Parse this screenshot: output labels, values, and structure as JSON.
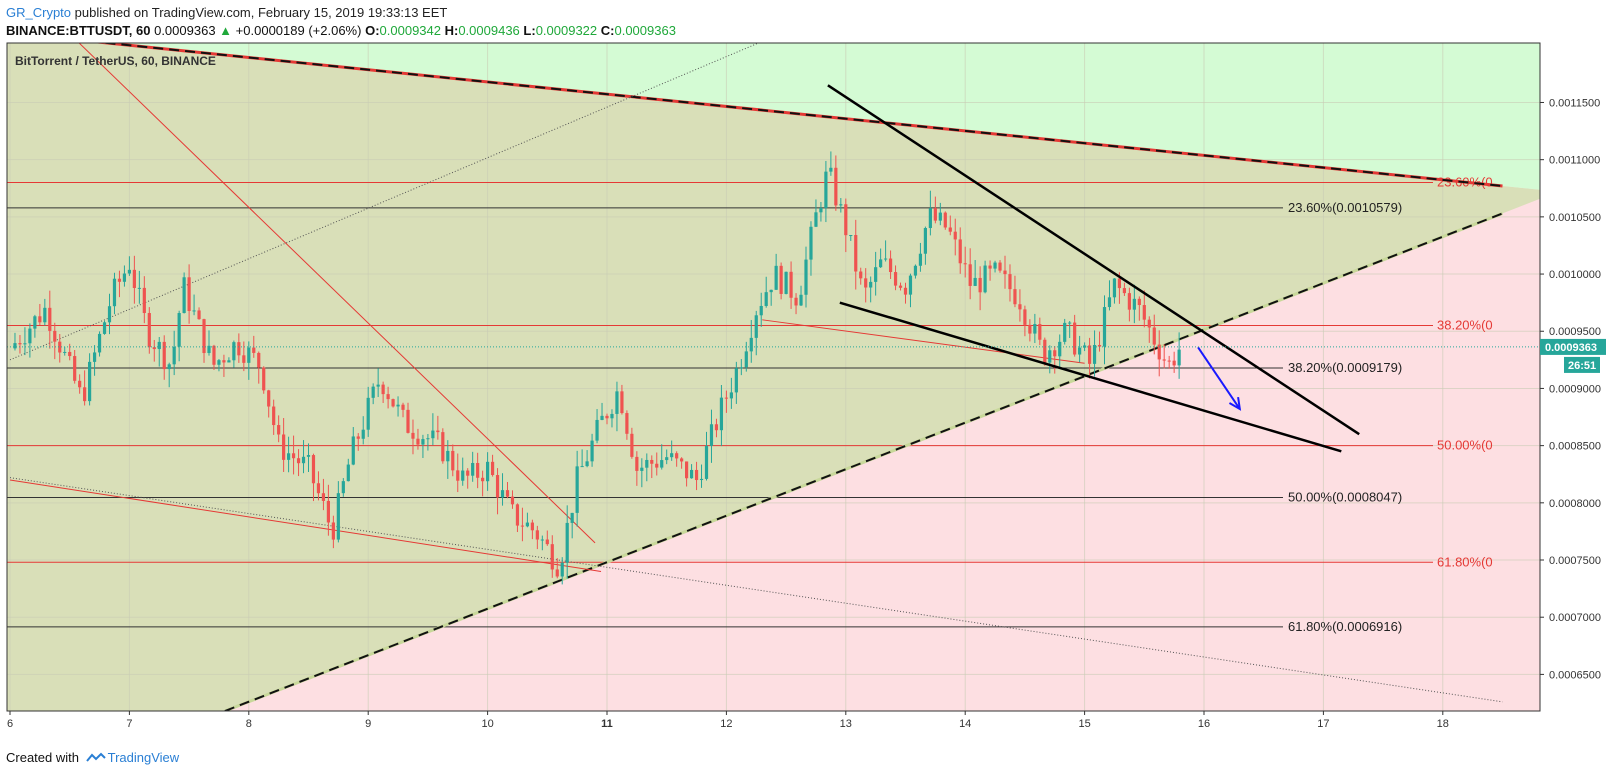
{
  "header": {
    "author": "GR_Crypto",
    "published_text": "published on TradingView.com, February 15, 2019 19:33:13 EET",
    "symbol": "BINANCE:BTTUSDT, 60",
    "last": "0.0009363",
    "change": "+0.0000189 (+2.06%)",
    "o_label": "O:",
    "o": "0.0009342",
    "h_label": "H:",
    "h": "0.0009436",
    "l_label": "L:",
    "l": "0.0009322",
    "c_label": "C:",
    "c": "0.0009363"
  },
  "footer": {
    "created_with": "Created with",
    "brand": "TradingView"
  },
  "colors": {
    "up": "#26a69a",
    "down": "#ef5350",
    "fib_red": "#e53935",
    "fib_black": "#333333",
    "zone_olive": "#d9dfb8",
    "zone_green": "#d4fbd4",
    "zone_pink": "#fddfe2",
    "arrow": "#1a1aff"
  },
  "chart_data": {
    "type": "candlestick",
    "title": "BitTorrent / TetherUS, 60, BINANCE",
    "x_tick_labels": [
      "6",
      "7",
      "8",
      "9",
      "10",
      "11",
      "12",
      "13",
      "14",
      "15",
      "16",
      "17",
      "18"
    ],
    "y_tick_labels": [
      "0.0011500",
      "0.0011000",
      "0.0010500",
      "0.0010000",
      "0.0009500",
      "0.0009000",
      "0.0008500",
      "0.0008000",
      "0.0007500",
      "0.0007000",
      "0.0006500"
    ],
    "ylim": [
      0.000618,
      0.001202
    ],
    "last_price_label": "0.0009363",
    "countdown_label": "26:51",
    "fib_black_levels": [
      {
        "label": "23.60%(0.0010579)",
        "value": 0.0010579
      },
      {
        "label": "38.20%(0.0009179)",
        "value": 0.0009179
      },
      {
        "label": "50.00%(0.0008047)",
        "value": 0.0008047
      },
      {
        "label": "61.80%(0.0006916)",
        "value": 0.0006916
      }
    ],
    "fib_red_levels": [
      {
        "label": "23.60%(0",
        "value": 0.00108
      },
      {
        "label": "38.20%(0",
        "value": 0.000955
      },
      {
        "label": "50.00%(0",
        "value": 0.00085
      },
      {
        "label": "61.80%(0",
        "value": 0.000748
      }
    ],
    "price_path": [
      {
        "t": 6.0,
        "p": 0.000935
      },
      {
        "t": 6.3,
        "p": 0.00097
      },
      {
        "t": 6.6,
        "p": 0.00089
      },
      {
        "t": 6.85,
        "p": 0.00098
      },
      {
        "t": 7.0,
        "p": 0.00101
      },
      {
        "t": 7.15,
        "p": 0.00095
      },
      {
        "t": 7.35,
        "p": 0.00092
      },
      {
        "t": 7.45,
        "p": 0.00099
      },
      {
        "t": 7.7,
        "p": 0.00092
      },
      {
        "t": 7.9,
        "p": 0.00094
      },
      {
        "t": 8.1,
        "p": 0.00092
      },
      {
        "t": 8.25,
        "p": 0.00085
      },
      {
        "t": 8.5,
        "p": 0.00083
      },
      {
        "t": 8.7,
        "p": 0.000775
      },
      {
        "t": 8.85,
        "p": 0.00084
      },
      {
        "t": 9.1,
        "p": 0.00091
      },
      {
        "t": 9.3,
        "p": 0.00087
      },
      {
        "t": 9.6,
        "p": 0.00085
      },
      {
        "t": 9.8,
        "p": 0.00082
      },
      {
        "t": 10.0,
        "p": 0.00083
      },
      {
        "t": 10.2,
        "p": 0.00079
      },
      {
        "t": 10.4,
        "p": 0.000775
      },
      {
        "t": 10.6,
        "p": 0.000745
      },
      {
        "t": 10.75,
        "p": 0.00082
      },
      {
        "t": 10.95,
        "p": 0.00087
      },
      {
        "t": 11.1,
        "p": 0.0009
      },
      {
        "t": 11.25,
        "p": 0.00083
      },
      {
        "t": 11.5,
        "p": 0.00084
      },
      {
        "t": 11.75,
        "p": 0.00082
      },
      {
        "t": 11.95,
        "p": 0.00088
      },
      {
        "t": 12.1,
        "p": 0.00092
      },
      {
        "t": 12.25,
        "p": 0.00097
      },
      {
        "t": 12.4,
        "p": 0.001
      },
      {
        "t": 12.6,
        "p": 0.00098
      },
      {
        "t": 12.75,
        "p": 0.00105
      },
      {
        "t": 12.85,
        "p": 0.00109
      },
      {
        "t": 13.0,
        "p": 0.00104
      },
      {
        "t": 13.15,
        "p": 0.00098
      },
      {
        "t": 13.3,
        "p": 0.00101
      },
      {
        "t": 13.5,
        "p": 0.00099
      },
      {
        "t": 13.7,
        "p": 0.00105
      },
      {
        "t": 13.85,
        "p": 0.00104
      },
      {
        "t": 14.05,
        "p": 0.00099
      },
      {
        "t": 14.25,
        "p": 0.001
      },
      {
        "t": 14.45,
        "p": 0.00098
      },
      {
        "t": 14.65,
        "p": 0.00093
      },
      {
        "t": 14.85,
        "p": 0.00095
      },
      {
        "t": 15.05,
        "p": 0.00092
      },
      {
        "t": 15.25,
        "p": 0.00099
      },
      {
        "t": 15.45,
        "p": 0.00097
      },
      {
        "t": 15.6,
        "p": 0.00094
      },
      {
        "t": 15.7,
        "p": 0.00092
      },
      {
        "t": 15.8,
        "p": 0.000936
      }
    ],
    "trendlines": [
      {
        "name": "upper-dashed-resistance",
        "t1": 5.6,
        "p1": 0.001215,
        "t2": 18.5,
        "p2": 0.001077,
        "color": "#e53935",
        "dash": true
      },
      {
        "name": "lower-dashed-support",
        "t1": 7.8,
        "p1": 0.000618,
        "t2": 18.5,
        "p2": 0.001053,
        "color": "#111111",
        "dash": true
      },
      {
        "name": "wedge-upper",
        "t1": 12.85,
        "p1": 0.001165,
        "t2": 17.3,
        "p2": 0.00086
      },
      {
        "name": "wedge-lower",
        "t1": 12.95,
        "p1": 0.000975,
        "t2": 17.15,
        "p2": 0.000845
      },
      {
        "name": "red-descending",
        "t1": 6.5,
        "p1": 0.00121,
        "t2": 10.9,
        "p2": 0.000765
      },
      {
        "name": "red-low-line",
        "t1": 6.0,
        "p1": 0.00082,
        "t2": 10.95,
        "p2": 0.00074
      },
      {
        "name": "red-mid-line",
        "t1": 12.3,
        "p1": 0.00096,
        "t2": 15.0,
        "p2": 0.000922
      },
      {
        "name": "dotted-up",
        "t1": 6.0,
        "p1": 0.000925,
        "t2": 12.45,
        "p2": 0.00121
      },
      {
        "name": "dotted-down",
        "t1": 6.0,
        "p1": 0.000822,
        "t2": 18.5,
        "p2": 0.000626
      }
    ],
    "projection_arrow": {
      "t1": 15.95,
      "p1": 0.000936,
      "t2": 16.3,
      "p2": 0.000882
    }
  }
}
